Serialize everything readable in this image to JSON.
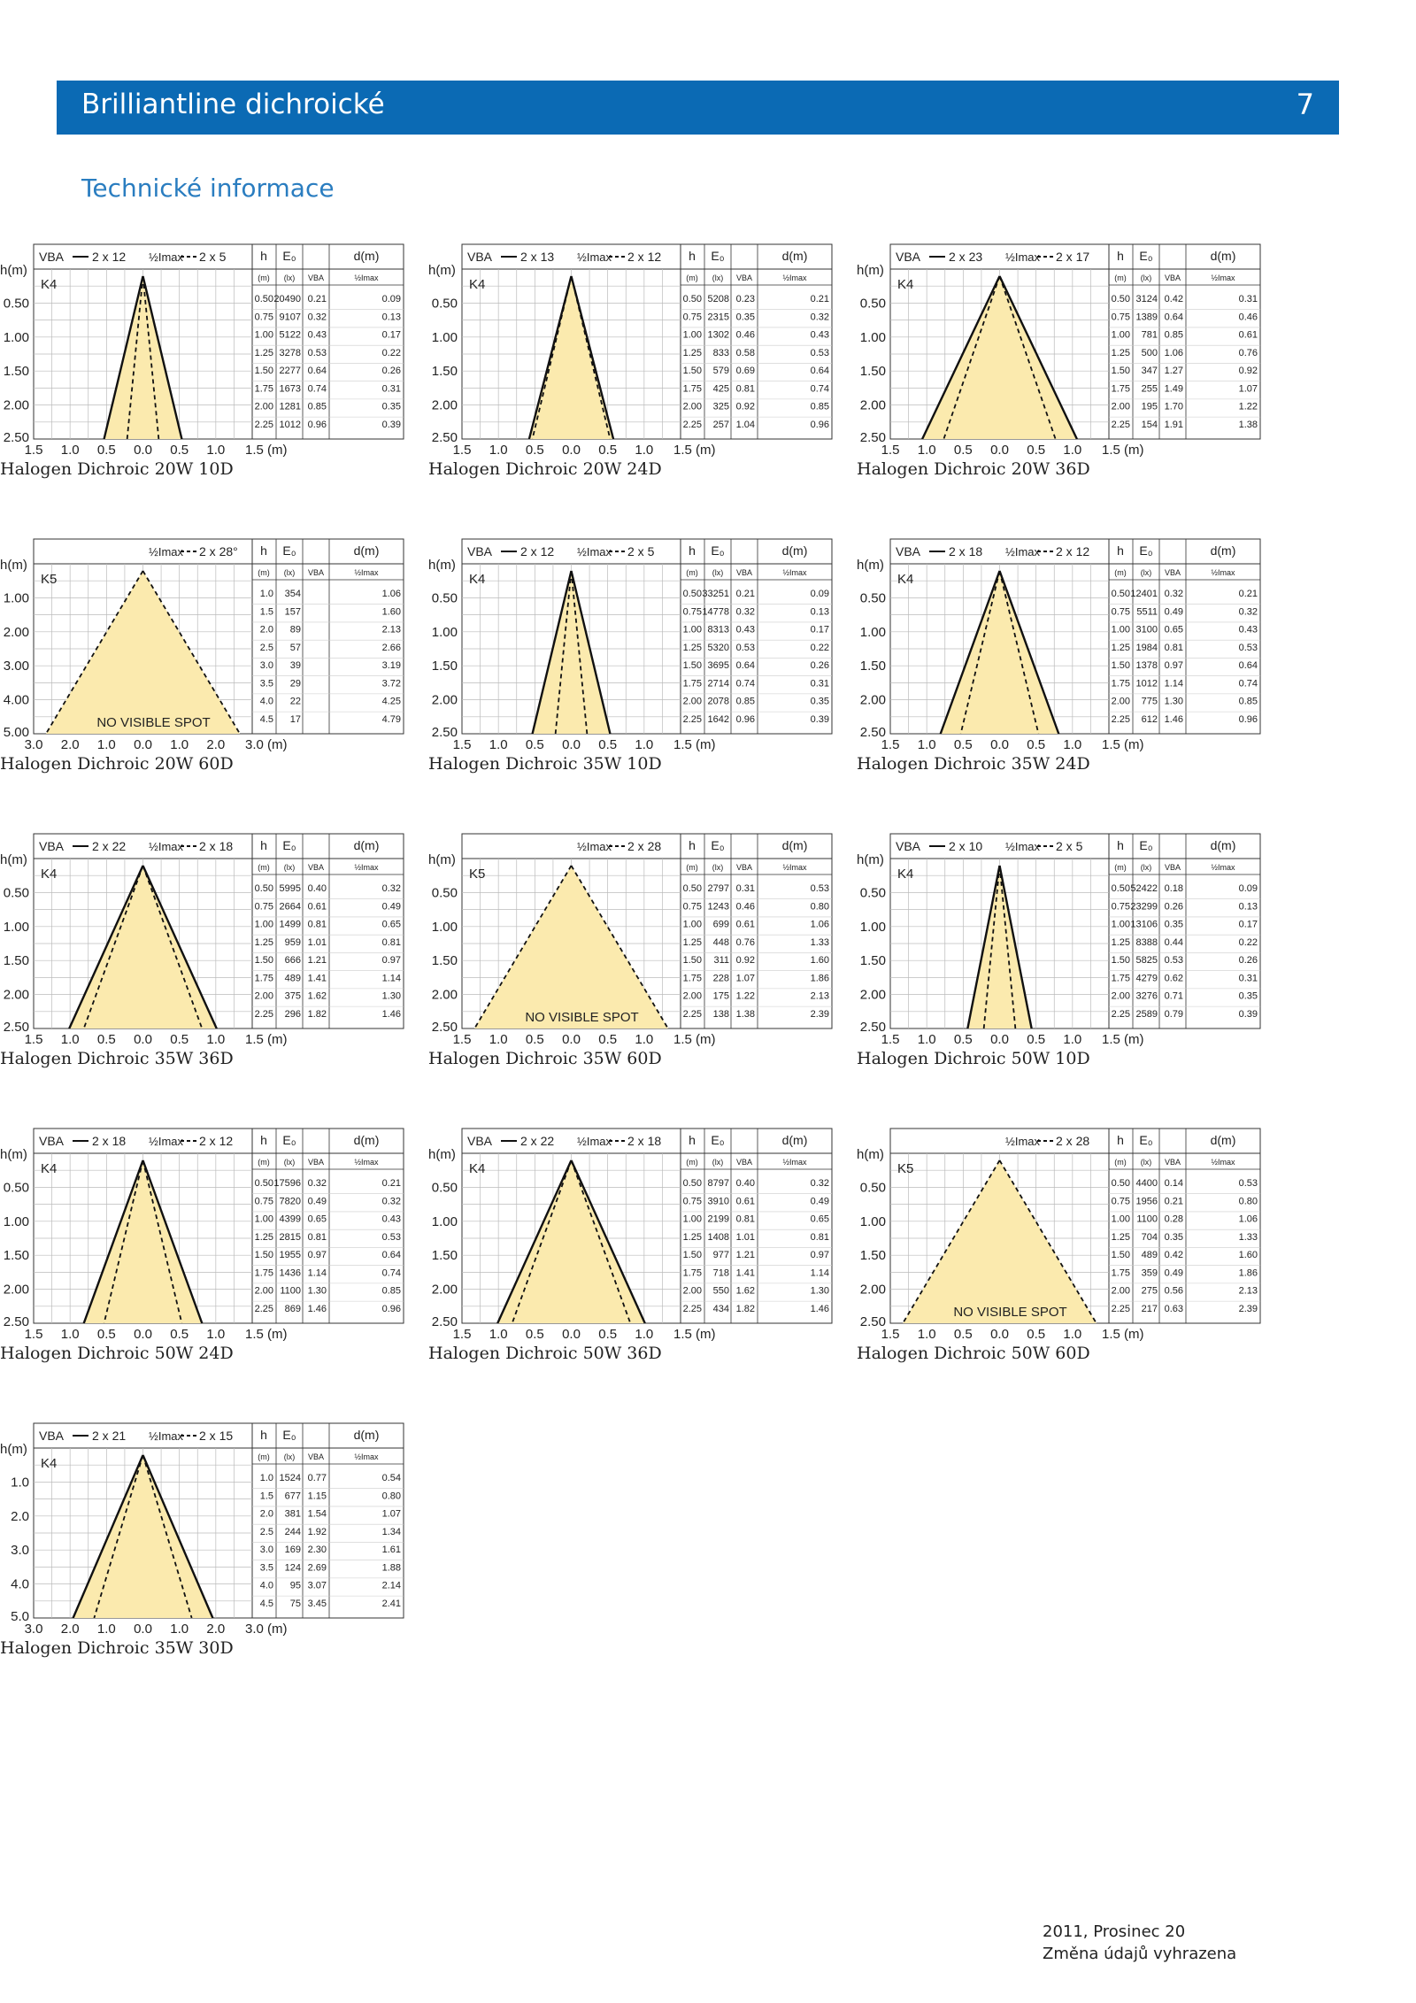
{
  "header": {
    "title": "Brilliantline dichroické",
    "page_number": "7"
  },
  "section_title": "Technické informace",
  "footer": {
    "date": "2011, Prosinec 20",
    "note": "Změna údajů vyhrazena"
  },
  "labels": {
    "h_axis": "h(m)",
    "vba": "VBA",
    "half_imax": "½Imax",
    "col_h": "h",
    "col_e": "E₀",
    "col_d": "d(m)",
    "unit_m": "(m)",
    "unit_lx": "(lx)",
    "unit_vba": "VBA",
    "unit_half": "½Imax",
    "no_spot": "NO VISIBLE SPOT"
  },
  "chart_data": [
    {
      "type": "table",
      "title": "Halogen Dichroic 20W 10D",
      "type_code": "K4",
      "vba": "2 x 12",
      "half": "2 x 5",
      "hmax": 2.5,
      "xmax": 1.5,
      "y_ticks": [
        "0.50",
        "1.00",
        "1.50",
        "2.00",
        "2.50"
      ],
      "x_ticks": [
        "1.5",
        "1.0",
        "0.5",
        "0.0",
        "0.5",
        "1.0",
        "1.5 (m)"
      ],
      "rows": [
        [
          "0.50",
          "20490",
          "0.21",
          "0.09"
        ],
        [
          "0.75",
          "9107",
          "0.32",
          "0.13"
        ],
        [
          "1.00",
          "5122",
          "0.43",
          "0.17"
        ],
        [
          "1.25",
          "3278",
          "0.53",
          "0.22"
        ],
        [
          "1.50",
          "2277",
          "0.64",
          "0.26"
        ],
        [
          "1.75",
          "1673",
          "0.74",
          "0.31"
        ],
        [
          "2.00",
          "1281",
          "0.85",
          "0.35"
        ],
        [
          "2.25",
          "1012",
          "0.96",
          "0.39"
        ]
      ],
      "vba_d": 0.96,
      "half_d": 0.39
    },
    {
      "type": "table",
      "title": "Halogen Dichroic 20W 24D",
      "type_code": "K4",
      "vba": "2 x 13",
      "half": "2 x 12",
      "hmax": 2.5,
      "xmax": 1.5,
      "y_ticks": [
        "0.50",
        "1.00",
        "1.50",
        "2.00",
        "2.50"
      ],
      "x_ticks": [
        "1.5",
        "1.0",
        "0.5",
        "0.0",
        "0.5",
        "1.0",
        "1.5 (m)"
      ],
      "rows": [
        [
          "0.50",
          "5208",
          "0.23",
          "0.21"
        ],
        [
          "0.75",
          "2315",
          "0.35",
          "0.32"
        ],
        [
          "1.00",
          "1302",
          "0.46",
          "0.43"
        ],
        [
          "1.25",
          "833",
          "0.58",
          "0.53"
        ],
        [
          "1.50",
          "579",
          "0.69",
          "0.64"
        ],
        [
          "1.75",
          "425",
          "0.81",
          "0.74"
        ],
        [
          "2.00",
          "325",
          "0.92",
          "0.85"
        ],
        [
          "2.25",
          "257",
          "1.04",
          "0.96"
        ]
      ],
      "vba_d": 1.04,
      "half_d": 0.96
    },
    {
      "type": "table",
      "title": "Halogen Dichroic 20W 36D",
      "type_code": "K4",
      "vba": "2 x 23",
      "half": "2 x 17",
      "hmax": 2.5,
      "xmax": 1.5,
      "y_ticks": [
        "0.50",
        "1.00",
        "1.50",
        "2.00",
        "2.50"
      ],
      "x_ticks": [
        "1.5",
        "1.0",
        "0.5",
        "0.0",
        "0.5",
        "1.0",
        "1.5 (m)"
      ],
      "rows": [
        [
          "0.50",
          "3124",
          "0.42",
          "0.31"
        ],
        [
          "0.75",
          "1389",
          "0.64",
          "0.46"
        ],
        [
          "1.00",
          "781",
          "0.85",
          "0.61"
        ],
        [
          "1.25",
          "500",
          "1.06",
          "0.76"
        ],
        [
          "1.50",
          "347",
          "1.27",
          "0.92"
        ],
        [
          "1.75",
          "255",
          "1.49",
          "1.07"
        ],
        [
          "2.00",
          "195",
          "1.70",
          "1.22"
        ],
        [
          "2.25",
          "154",
          "1.91",
          "1.38"
        ]
      ],
      "vba_d": 1.91,
      "half_d": 1.38
    },
    {
      "type": "table",
      "title": "Halogen Dichroic 20W 60D",
      "type_code": "K5",
      "vba": "",
      "half": "2 x 28°",
      "hmax": 5.0,
      "xmax": 3.0,
      "no_spot": true,
      "y_ticks": [
        "1.00",
        "2.00",
        "3.00",
        "4.00",
        "5.00"
      ],
      "x_ticks": [
        "3.0",
        "2.0",
        "1.0",
        "0.0",
        "1.0",
        "2.0",
        "3.0 (m)"
      ],
      "rows": [
        [
          "1.0",
          "354",
          "",
          "1.06"
        ],
        [
          "1.5",
          "157",
          "",
          "1.60"
        ],
        [
          "2.0",
          "89",
          "",
          "2.13"
        ],
        [
          "2.5",
          "57",
          "",
          "2.66"
        ],
        [
          "3.0",
          "39",
          "",
          "3.19"
        ],
        [
          "3.5",
          "29",
          "",
          "3.72"
        ],
        [
          "4.0",
          "22",
          "",
          "4.25"
        ],
        [
          "4.5",
          "17",
          "",
          "4.79"
        ]
      ],
      "vba_d": 0,
      "half_d": 4.79
    },
    {
      "type": "table",
      "title": "Halogen Dichroic 35W 10D",
      "type_code": "K4",
      "vba": "2 x 12",
      "half": "2 x 5",
      "hmax": 2.5,
      "xmax": 1.5,
      "y_ticks": [
        "0.50",
        "1.00",
        "1.50",
        "2.00",
        "2.50"
      ],
      "x_ticks": [
        "1.5",
        "1.0",
        "0.5",
        "0.0",
        "0.5",
        "1.0",
        "1.5 (m)"
      ],
      "rows": [
        [
          "0.50",
          "33251",
          "0.21",
          "0.09"
        ],
        [
          "0.75",
          "14778",
          "0.32",
          "0.13"
        ],
        [
          "1.00",
          "8313",
          "0.43",
          "0.17"
        ],
        [
          "1.25",
          "5320",
          "0.53",
          "0.22"
        ],
        [
          "1.50",
          "3695",
          "0.64",
          "0.26"
        ],
        [
          "1.75",
          "2714",
          "0.74",
          "0.31"
        ],
        [
          "2.00",
          "2078",
          "0.85",
          "0.35"
        ],
        [
          "2.25",
          "1642",
          "0.96",
          "0.39"
        ]
      ],
      "vba_d": 0.96,
      "half_d": 0.39
    },
    {
      "type": "table",
      "title": "Halogen Dichroic 35W 24D",
      "type_code": "K4",
      "vba": "2 x 18",
      "half": "2 x 12",
      "hmax": 2.5,
      "xmax": 1.5,
      "y_ticks": [
        "0.50",
        "1.00",
        "1.50",
        "2.00",
        "2.50"
      ],
      "x_ticks": [
        "1.5",
        "1.0",
        "0.5",
        "0.0",
        "0.5",
        "1.0",
        "1.5 (m)"
      ],
      "rows": [
        [
          "0.50",
          "12401",
          "0.32",
          "0.21"
        ],
        [
          "0.75",
          "5511",
          "0.49",
          "0.32"
        ],
        [
          "1.00",
          "3100",
          "0.65",
          "0.43"
        ],
        [
          "1.25",
          "1984",
          "0.81",
          "0.53"
        ],
        [
          "1.50",
          "1378",
          "0.97",
          "0.64"
        ],
        [
          "1.75",
          "1012",
          "1.14",
          "0.74"
        ],
        [
          "2.00",
          "775",
          "1.30",
          "0.85"
        ],
        [
          "2.25",
          "612",
          "1.46",
          "0.96"
        ]
      ],
      "vba_d": 1.46,
      "half_d": 0.96
    },
    {
      "type": "table",
      "title": "Halogen Dichroic 35W 36D",
      "type_code": "K4",
      "vba": "2 x 22",
      "half": "2 x 18",
      "hmax": 2.5,
      "xmax": 1.5,
      "y_ticks": [
        "0.50",
        "1.00",
        "1.50",
        "2.00",
        "2.50"
      ],
      "x_ticks": [
        "1.5",
        "1.0",
        "0.5",
        "0.0",
        "0.5",
        "1.0",
        "1.5 (m)"
      ],
      "rows": [
        [
          "0.50",
          "5995",
          "0.40",
          "0.32"
        ],
        [
          "0.75",
          "2664",
          "0.61",
          "0.49"
        ],
        [
          "1.00",
          "1499",
          "0.81",
          "0.65"
        ],
        [
          "1.25",
          "959",
          "1.01",
          "0.81"
        ],
        [
          "1.50",
          "666",
          "1.21",
          "0.97"
        ],
        [
          "1.75",
          "489",
          "1.41",
          "1.14"
        ],
        [
          "2.00",
          "375",
          "1.62",
          "1.30"
        ],
        [
          "2.25",
          "296",
          "1.82",
          "1.46"
        ]
      ],
      "vba_d": 1.82,
      "half_d": 1.46
    },
    {
      "type": "table",
      "title": "Halogen Dichroic 35W 60D",
      "type_code": "K5",
      "vba": "",
      "half": "2 x 28",
      "hmax": 2.5,
      "xmax": 1.5,
      "no_spot": true,
      "y_ticks": [
        "0.50",
        "1.00",
        "1.50",
        "2.00",
        "2.50"
      ],
      "x_ticks": [
        "1.5",
        "1.0",
        "0.5",
        "0.0",
        "0.5",
        "1.0",
        "1.5 (m)"
      ],
      "rows": [
        [
          "0.50",
          "2797",
          "0.31",
          "0.53"
        ],
        [
          "0.75",
          "1243",
          "0.46",
          "0.80"
        ],
        [
          "1.00",
          "699",
          "0.61",
          "1.06"
        ],
        [
          "1.25",
          "448",
          "0.76",
          "1.33"
        ],
        [
          "1.50",
          "311",
          "0.92",
          "1.60"
        ],
        [
          "1.75",
          "228",
          "1.07",
          "1.86"
        ],
        [
          "2.00",
          "175",
          "1.22",
          "2.13"
        ],
        [
          "2.25",
          "138",
          "1.38",
          "2.39"
        ]
      ],
      "vba_d": 0,
      "half_d": 2.39
    },
    {
      "type": "table",
      "title": "Halogen Dichroic 50W 10D",
      "type_code": "K4",
      "vba": "2 x 10",
      "half": "2 x 5",
      "hmax": 2.5,
      "xmax": 1.5,
      "y_ticks": [
        "0.50",
        "1.00",
        "1.50",
        "2.00",
        "2.50"
      ],
      "x_ticks": [
        "1.5",
        "1.0",
        "0.5",
        "0.0",
        "0.5",
        "1.0",
        "1.5 (m)"
      ],
      "rows": [
        [
          "0.50",
          "52422",
          "0.18",
          "0.09"
        ],
        [
          "0.75",
          "23299",
          "0.26",
          "0.13"
        ],
        [
          "1.00",
          "13106",
          "0.35",
          "0.17"
        ],
        [
          "1.25",
          "8388",
          "0.44",
          "0.22"
        ],
        [
          "1.50",
          "5825",
          "0.53",
          "0.26"
        ],
        [
          "1.75",
          "4279",
          "0.62",
          "0.31"
        ],
        [
          "2.00",
          "3276",
          "0.71",
          "0.35"
        ],
        [
          "2.25",
          "2589",
          "0.79",
          "0.39"
        ]
      ],
      "vba_d": 0.79,
      "half_d": 0.39
    },
    {
      "type": "table",
      "title": "Halogen Dichroic 50W 24D",
      "type_code": "K4",
      "vba": "2 x 18",
      "half": "2 x 12",
      "hmax": 2.5,
      "xmax": 1.5,
      "y_ticks": [
        "0.50",
        "1.00",
        "1.50",
        "2.00",
        "2.50"
      ],
      "x_ticks": [
        "1.5",
        "1.0",
        "0.5",
        "0.0",
        "0.5",
        "1.0",
        "1.5 (m)"
      ],
      "rows": [
        [
          "0.50",
          "17596",
          "0.32",
          "0.21"
        ],
        [
          "0.75",
          "7820",
          "0.49",
          "0.32"
        ],
        [
          "1.00",
          "4399",
          "0.65",
          "0.43"
        ],
        [
          "1.25",
          "2815",
          "0.81",
          "0.53"
        ],
        [
          "1.50",
          "1955",
          "0.97",
          "0.64"
        ],
        [
          "1.75",
          "1436",
          "1.14",
          "0.74"
        ],
        [
          "2.00",
          "1100",
          "1.30",
          "0.85"
        ],
        [
          "2.25",
          "869",
          "1.46",
          "0.96"
        ]
      ],
      "vba_d": 1.46,
      "half_d": 0.96
    },
    {
      "type": "table",
      "title": "Halogen Dichroic 50W 36D",
      "type_code": "K4",
      "vba": "2 x 22",
      "half": "2 x 18",
      "hmax": 2.5,
      "xmax": 1.5,
      "y_ticks": [
        "0.50",
        "1.00",
        "1.50",
        "2.00",
        "2.50"
      ],
      "x_ticks": [
        "1.5",
        "1.0",
        "0.5",
        "0.0",
        "0.5",
        "1.0",
        "1.5 (m)"
      ],
      "rows": [
        [
          "0.50",
          "8797",
          "0.40",
          "0.32"
        ],
        [
          "0.75",
          "3910",
          "0.61",
          "0.49"
        ],
        [
          "1.00",
          "2199",
          "0.81",
          "0.65"
        ],
        [
          "1.25",
          "1408",
          "1.01",
          "0.81"
        ],
        [
          "1.50",
          "977",
          "1.21",
          "0.97"
        ],
        [
          "1.75",
          "718",
          "1.41",
          "1.14"
        ],
        [
          "2.00",
          "550",
          "1.62",
          "1.30"
        ],
        [
          "2.25",
          "434",
          "1.82",
          "1.46"
        ]
      ],
      "vba_d": 1.82,
      "half_d": 1.46
    },
    {
      "type": "table",
      "title": "Halogen Dichroic 50W 60D",
      "type_code": "K5",
      "vba": "",
      "half": "2 x 28",
      "hmax": 2.5,
      "xmax": 1.5,
      "no_spot": true,
      "y_ticks": [
        "0.50",
        "1.00",
        "1.50",
        "2.00",
        "2.50"
      ],
      "x_ticks": [
        "1.5",
        "1.0",
        "0.5",
        "0.0",
        "0.5",
        "1.0",
        "1.5 (m)"
      ],
      "rows": [
        [
          "0.50",
          "4400",
          "0.14",
          "0.53"
        ],
        [
          "0.75",
          "1956",
          "0.21",
          "0.80"
        ],
        [
          "1.00",
          "1100",
          "0.28",
          "1.06"
        ],
        [
          "1.25",
          "704",
          "0.35",
          "1.33"
        ],
        [
          "1.50",
          "489",
          "0.42",
          "1.60"
        ],
        [
          "1.75",
          "359",
          "0.49",
          "1.86"
        ],
        [
          "2.00",
          "275",
          "0.56",
          "2.13"
        ],
        [
          "2.25",
          "217",
          "0.63",
          "2.39"
        ]
      ],
      "vba_d": 0,
      "half_d": 2.39
    },
    {
      "type": "table",
      "title": "Halogen Dichroic 35W 30D",
      "type_code": "K4",
      "vba": "2 x 21",
      "half": "2 x 15",
      "hmax": 5.0,
      "xmax": 3.0,
      "y_ticks": [
        "1.0",
        "2.0",
        "3.0",
        "4.0",
        "5.0"
      ],
      "x_ticks": [
        "3.0",
        "2.0",
        "1.0",
        "0.0",
        "1.0",
        "2.0",
        "3.0 (m)"
      ],
      "rows": [
        [
          "1.0",
          "1524",
          "0.77",
          "0.54"
        ],
        [
          "1.5",
          "677",
          "1.15",
          "0.80"
        ],
        [
          "2.0",
          "381",
          "1.54",
          "1.07"
        ],
        [
          "2.5",
          "244",
          "1.92",
          "1.34"
        ],
        [
          "3.0",
          "169",
          "2.30",
          "1.61"
        ],
        [
          "3.5",
          "124",
          "2.69",
          "1.88"
        ],
        [
          "4.0",
          "95",
          "3.07",
          "2.14"
        ],
        [
          "4.5",
          "75",
          "3.45",
          "2.41"
        ]
      ],
      "vba_d": 3.45,
      "half_d": 2.41
    }
  ]
}
